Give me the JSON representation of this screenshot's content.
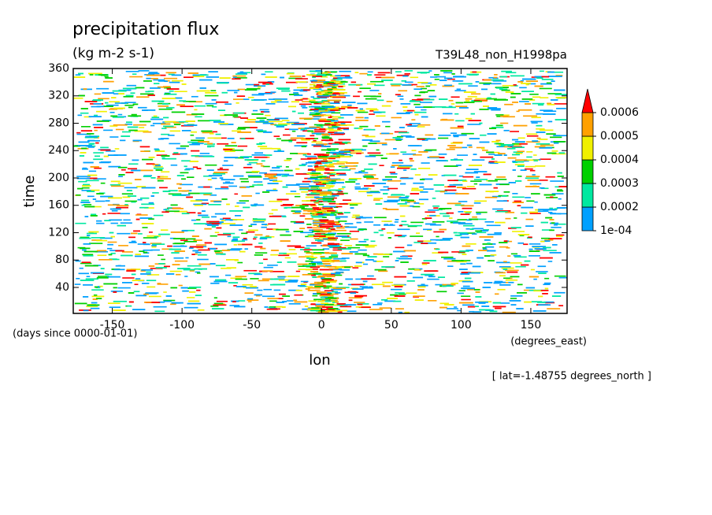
{
  "chart_data": {
    "type": "heatmap",
    "title": "precipitation flux",
    "units": "(kg m-2 s-1)",
    "subtitle": "T39L48_non_H1998pa",
    "x_label": "lon",
    "x_units": "(degrees_east)",
    "y_label": "time",
    "y_units": "(days since 0000-01-01)",
    "note": "[ lat=-1.48755 degrees_north ]",
    "xlim": [
      -178,
      176
    ],
    "xticks": [
      -150,
      -100,
      -50,
      0,
      50,
      100,
      150
    ],
    "ylim": [
      2,
      360
    ],
    "yticks": [
      40,
      80,
      120,
      160,
      200,
      240,
      280,
      320,
      360
    ],
    "levels": [
      {
        "value": 0.0001,
        "label": "1e-04"
      },
      0.0002,
      0.0003,
      0.0004,
      0.0005,
      0.0006
    ],
    "colors": [
      "#00a0ff",
      "#00e8a0",
      "#00d000",
      "#f0f000",
      "#ffa000",
      "#ff0000"
    ]
  }
}
